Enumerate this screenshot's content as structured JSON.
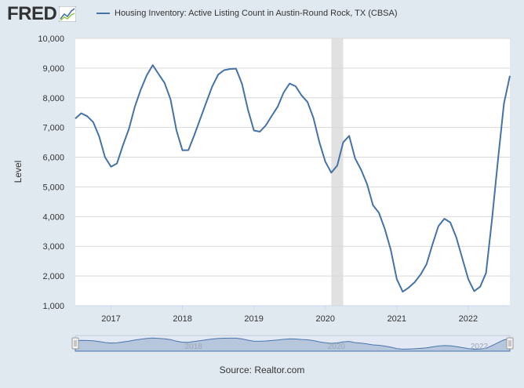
{
  "header": {
    "logo_text": "FRED",
    "logo_icon": "fred-chart-icon",
    "legend_label": "Housing Inventory: Active Listing Count in Austin-Round Rock, TX (CBSA)"
  },
  "footer": {
    "source": "Source: Realtor.com"
  },
  "colors": {
    "series": "#4572a7",
    "recession": "#e1e1e1",
    "background": "#e1e9f0",
    "plot_background": "#ffffff",
    "grid": "#d9d9d9"
  },
  "chart_data": {
    "type": "line",
    "title": "",
    "xlabel": "",
    "ylabel": "Level",
    "ylim": [
      1000,
      10000
    ],
    "yticks": [
      "1,000",
      "2,000",
      "3,000",
      "4,000",
      "5,000",
      "6,000",
      "7,000",
      "8,000",
      "9,000",
      "10,000"
    ],
    "xticks": [
      "2017",
      "2018",
      "2019",
      "2020",
      "2021",
      "2022"
    ],
    "grid": "horizontal",
    "legend_position": "top",
    "recession_shading": [
      {
        "start": "2020-02",
        "end": "2020-04"
      }
    ],
    "navigator_labels": [
      "2018",
      "2020",
      "2022"
    ],
    "series": [
      {
        "name": "Housing Inventory: Active Listing Count in Austin-Round Rock, TX (CBSA)",
        "x": [
          "2016-07",
          "2016-08",
          "2016-09",
          "2016-10",
          "2016-11",
          "2016-12",
          "2017-01",
          "2017-02",
          "2017-03",
          "2017-04",
          "2017-05",
          "2017-06",
          "2017-07",
          "2017-08",
          "2017-09",
          "2017-10",
          "2017-11",
          "2017-12",
          "2018-01",
          "2018-02",
          "2018-03",
          "2018-04",
          "2018-05",
          "2018-06",
          "2018-07",
          "2018-08",
          "2018-09",
          "2018-10",
          "2018-11",
          "2018-12",
          "2019-01",
          "2019-02",
          "2019-03",
          "2019-04",
          "2019-05",
          "2019-06",
          "2019-07",
          "2019-08",
          "2019-09",
          "2019-10",
          "2019-11",
          "2019-12",
          "2020-01",
          "2020-02",
          "2020-03",
          "2020-04",
          "2020-05",
          "2020-06",
          "2020-07",
          "2020-08",
          "2020-09",
          "2020-10",
          "2020-11",
          "2020-12",
          "2021-01",
          "2021-02",
          "2021-03",
          "2021-04",
          "2021-05",
          "2021-06",
          "2021-07",
          "2021-08",
          "2021-09",
          "2021-10",
          "2021-11",
          "2021-12",
          "2022-01",
          "2022-02",
          "2022-03",
          "2022-04",
          "2022-05",
          "2022-06",
          "2022-07",
          "2022-08"
        ],
        "values": [
          7300,
          7480,
          7380,
          7180,
          6700,
          6000,
          5680,
          5790,
          6400,
          6950,
          7700,
          8280,
          8760,
          9100,
          8800,
          8500,
          7950,
          6900,
          6230,
          6240,
          6750,
          7300,
          7850,
          8380,
          8780,
          8930,
          8970,
          8980,
          8470,
          7600,
          6900,
          6860,
          7070,
          7390,
          7700,
          8180,
          8480,
          8390,
          8080,
          7860,
          7320,
          6500,
          5850,
          5480,
          5720,
          6500,
          6720,
          5960,
          5580,
          5100,
          4380,
          4130,
          3580,
          2880,
          1900,
          1470,
          1610,
          1790,
          2050,
          2400,
          3060,
          3680,
          3930,
          3800,
          3300,
          2600,
          1900,
          1490,
          1640,
          2100,
          3900,
          5900,
          7800,
          8740
        ]
      }
    ]
  }
}
